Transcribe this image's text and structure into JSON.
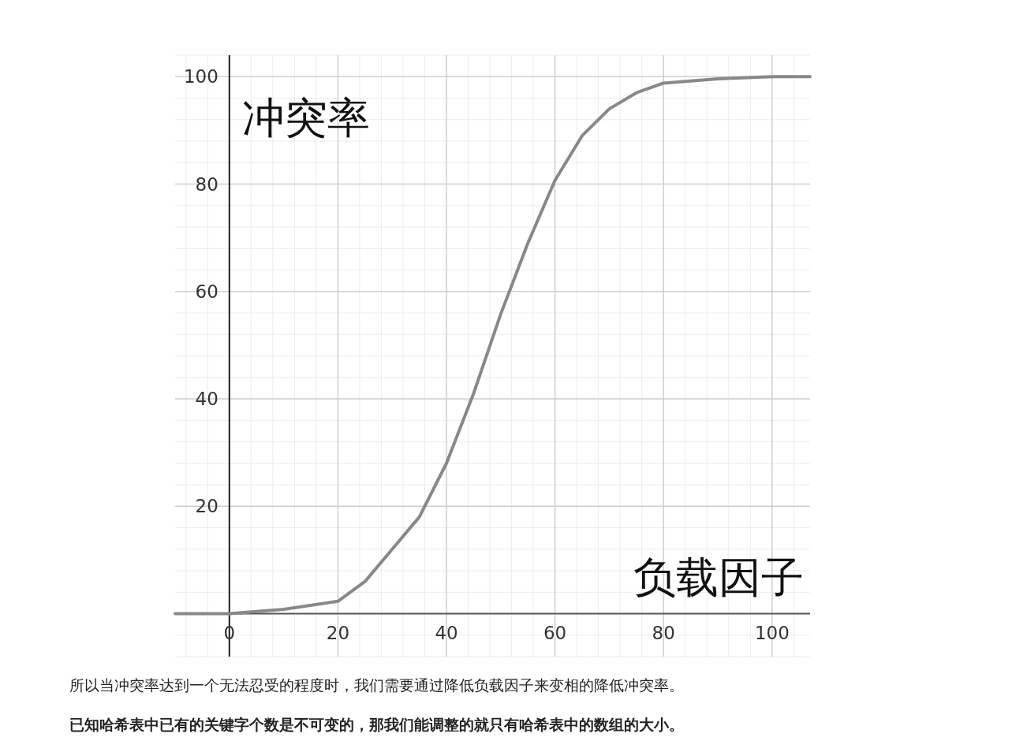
{
  "chart_data": {
    "type": "line",
    "xlabel": "负载因子",
    "ylabel": "冲突率",
    "x": [
      -10,
      0,
      10,
      20,
      25,
      30,
      35,
      40,
      45,
      50,
      55,
      60,
      65,
      70,
      75,
      80,
      90,
      100,
      107
    ],
    "values": [
      0,
      0,
      0.8,
      2.3,
      6,
      12,
      18,
      28,
      41,
      55.8,
      69,
      80.7,
      89,
      94,
      97,
      98.8,
      99.6,
      100,
      100
    ],
    "color": "#888888",
    "xlim": [
      -10,
      107
    ],
    "ylim": [
      -8,
      104
    ],
    "xticks": [
      0,
      20,
      40,
      60,
      80,
      100
    ],
    "yticks": [
      20,
      40,
      60,
      80,
      100
    ],
    "grid": true,
    "annotations": [
      "所以当冲突率达到一个无法忍受的程度时，我们需要通过降低负载因子来变相的降低冲突率。",
      "已知哈希表中已有的关键字个数是不可变的，那我们能调整的就只有哈希表中的数组的大小。"
    ]
  }
}
